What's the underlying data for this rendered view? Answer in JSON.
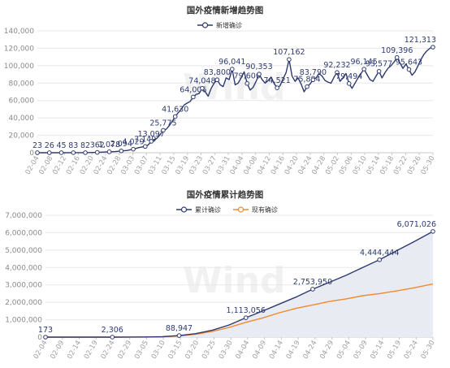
{
  "watermark": "Wind",
  "chart_data": [
    {
      "type": "line",
      "title": "国外疫情新增趋势图",
      "legend": {
        "placement": "top-center"
      },
      "ylim": [
        0,
        140000
      ],
      "yticks": [
        "0",
        "20,000",
        "40,000",
        "60,000",
        "80,000",
        "100,000",
        "120,000",
        "140,000"
      ],
      "x_tick_labels": [
        "02-04",
        "02-08",
        "02-12",
        "02-16",
        "02-20",
        "02-24",
        "02-28",
        "03-03",
        "03-07",
        "03-11",
        "03-15",
        "03-19",
        "03-23",
        "03-27",
        "03-31",
        "04-04",
        "04-08",
        "04-12",
        "04-16",
        "04-20",
        "04-24",
        "04-28",
        "05-02",
        "05-06",
        "05-10",
        "05-14",
        "05-18",
        "05-22",
        "05-26",
        "05-30"
      ],
      "series": [
        {
          "name": "新增确诊",
          "color": "#2e3a6e",
          "points": [
            [
              0,
              23
            ],
            [
              4,
              26
            ],
            [
              8,
              45
            ],
            [
              12,
              83
            ],
            [
              16,
              82
            ],
            [
              20,
              362
            ],
            [
              24,
              1078
            ],
            [
              26,
              1300
            ],
            [
              28,
              2094
            ],
            [
              30,
              2600
            ],
            [
              32,
              4029
            ],
            [
              34,
              6000
            ],
            [
              36,
              7149
            ],
            [
              37,
              9000
            ],
            [
              38,
              13097
            ],
            [
              39,
              14500
            ],
            [
              40,
              17000
            ],
            [
              41,
              21000
            ],
            [
              42,
              25775
            ],
            [
              43,
              27000
            ],
            [
              44,
              31000
            ],
            [
              45,
              36000
            ],
            [
              46,
              41630
            ],
            [
              47,
              46000
            ],
            [
              48,
              50000
            ],
            [
              49,
              55000
            ],
            [
              50,
              57000
            ],
            [
              51,
              59000
            ],
            [
              52,
              64006
            ],
            [
              53,
              67000
            ],
            [
              54,
              68000
            ],
            [
              55,
              74048
            ],
            [
              56,
              70000
            ],
            [
              57,
              65000
            ],
            [
              58,
              74000
            ],
            [
              59,
              80000
            ],
            [
              60,
              83800
            ],
            [
              61,
              78000
            ],
            [
              62,
              76000
            ],
            [
              63,
              86000
            ],
            [
              64,
              84000
            ],
            [
              65,
              96041
            ],
            [
              66,
              78000
            ],
            [
              67,
              80000
            ],
            [
              68,
              86000
            ],
            [
              69,
              93000
            ],
            [
              70,
              79600
            ],
            [
              71,
              72000
            ],
            [
              72,
              75000
            ],
            [
              73,
              82000
            ],
            [
              74,
              90353
            ],
            [
              75,
              84000
            ],
            [
              76,
              80000
            ],
            [
              77,
              83000
            ],
            [
              78,
              87000
            ],
            [
              79,
              79500
            ],
            [
              80,
              74521
            ],
            [
              81,
              77000
            ],
            [
              82,
              85000
            ],
            [
              83,
              92000
            ],
            [
              84,
              107162
            ],
            [
              85,
              88000
            ],
            [
              86,
              82000
            ],
            [
              87,
              86000
            ],
            [
              88,
              79000
            ],
            [
              89,
              70000
            ],
            [
              90,
              75884
            ],
            [
              91,
              79000
            ],
            [
              92,
              83790
            ],
            [
              93,
              86000
            ],
            [
              94,
              91000
            ],
            [
              95,
              88000
            ],
            [
              96,
              83000
            ],
            [
              97,
              81000
            ],
            [
              98,
              80000
            ],
            [
              99,
              87000
            ],
            [
              100,
              92232
            ],
            [
              101,
              82000
            ],
            [
              102,
              86000
            ],
            [
              103,
              91000
            ],
            [
              104,
              79494
            ],
            [
              105,
              74000
            ],
            [
              106,
              80000
            ],
            [
              107,
              86000
            ],
            [
              108,
              91000
            ],
            [
              109,
              96145
            ],
            [
              110,
              90000
            ],
            [
              111,
              84000
            ],
            [
              112,
              82000
            ],
            [
              113,
              88000
            ],
            [
              114,
              93577
            ],
            [
              115,
              86000
            ],
            [
              116,
              92000
            ],
            [
              117,
              97000
            ],
            [
              118,
              100000
            ],
            [
              119,
              104000
            ],
            [
              120,
              109396
            ],
            [
              121,
              103000
            ],
            [
              122,
              97000
            ],
            [
              123,
              102000
            ],
            [
              124,
              95643
            ],
            [
              125,
              89000
            ],
            [
              126,
              93000
            ],
            [
              127,
              100000
            ],
            [
              128,
              107000
            ],
            [
              129,
              113000
            ],
            [
              130,
              117000
            ],
            [
              131,
              120000
            ],
            [
              132,
              121313
            ]
          ],
          "labels": [
            {
              "i": 0,
              "text": "23"
            },
            {
              "i": 4,
              "text": "26"
            },
            {
              "i": 8,
              "text": "45"
            },
            {
              "i": 12,
              "text": "83"
            },
            {
              "i": 16,
              "text": "82"
            },
            {
              "i": 20,
              "text": "362"
            },
            {
              "i": 24,
              "text": "1,078"
            },
            {
              "i": 28,
              "text": "2,094"
            },
            {
              "i": 32,
              "text": "4,029"
            },
            {
              "i": 36,
              "text": "7,149"
            },
            {
              "i": 38,
              "text": "13,097"
            },
            {
              "i": 42,
              "text": "25,775"
            },
            {
              "i": 46,
              "text": "41,630"
            },
            {
              "i": 52,
              "text": "64,006"
            },
            {
              "i": 55,
              "text": "74,048"
            },
            {
              "i": 60,
              "text": "83,800"
            },
            {
              "i": 65,
              "text": "96,041"
            },
            {
              "i": 70,
              "text": "79,600"
            },
            {
              "i": 74,
              "text": "90,353"
            },
            {
              "i": 80,
              "text": "74,521"
            },
            {
              "i": 84,
              "text": "107,162"
            },
            {
              "i": 90,
              "text": "75,884"
            },
            {
              "i": 92,
              "text": "83,790"
            },
            {
              "i": 100,
              "text": "92,232"
            },
            {
              "i": 104,
              "text": "79,494"
            },
            {
              "i": 109,
              "text": "96,145"
            },
            {
              "i": 114,
              "text": "93,577"
            },
            {
              "i": 120,
              "text": "109,396"
            },
            {
              "i": 124,
              "text": "95,643"
            },
            {
              "i": 132,
              "text": "121,313"
            }
          ]
        }
      ]
    },
    {
      "type": "area",
      "title": "国外疫情累计趋势图",
      "legend": {
        "placement": "top-center"
      },
      "ylim": [
        0,
        7000000
      ],
      "yticks": [
        "0",
        "1,000,000",
        "2,000,000",
        "3,000,000",
        "4,000,000",
        "5,000,000",
        "6,000,000",
        "7,000,000"
      ],
      "x_tick_labels": [
        "02-04",
        "02-09",
        "02-14",
        "02-19",
        "02-24",
        "02-29",
        "03-05",
        "03-10",
        "03-15",
        "03-20",
        "03-25",
        "03-30",
        "04-04",
        "04-09",
        "04-14",
        "04-19",
        "04-24",
        "04-29",
        "05-04",
        "05-09",
        "05-14",
        "05-19",
        "05-24",
        "05-30"
      ],
      "series": [
        {
          "name": "累计确诊",
          "color": "#2e3a6e",
          "points": [
            [
              0,
              173
            ],
            [
              10,
              300
            ],
            [
              20,
              2306
            ],
            [
              25,
              3500
            ],
            [
              30,
              8000
            ],
            [
              35,
              25000
            ],
            [
              40,
              88947
            ],
            [
              45,
              200000
            ],
            [
              50,
              400000
            ],
            [
              55,
              700000
            ],
            [
              60,
              1113056
            ],
            [
              65,
              1500000
            ],
            [
              70,
              1900000
            ],
            [
              75,
              2300000
            ],
            [
              80,
              2753950
            ],
            [
              85,
              3150000
            ],
            [
              90,
              3550000
            ],
            [
              95,
              4000000
            ],
            [
              100,
              4444444
            ],
            [
              105,
              4950000
            ],
            [
              110,
              5450000
            ],
            [
              116,
              6071026
            ]
          ],
          "labels": [
            {
              "i": 0,
              "text": "173"
            },
            {
              "i": 20,
              "text": "2,306"
            },
            {
              "i": 40,
              "text": "88,947"
            },
            {
              "i": 60,
              "text": "1,113,056"
            },
            {
              "i": 80,
              "text": "2,753,950"
            },
            {
              "i": 100,
              "text": "4,444,444"
            },
            {
              "i": 116,
              "text": "6,071,026"
            }
          ]
        },
        {
          "name": "现有确诊",
          "color": "#ef8a2e",
          "points": [
            [
              0,
              150
            ],
            [
              10,
              250
            ],
            [
              20,
              1500
            ],
            [
              25,
              2500
            ],
            [
              30,
              6000
            ],
            [
              35,
              20000
            ],
            [
              40,
              70000
            ],
            [
              45,
              170000
            ],
            [
              50,
              330000
            ],
            [
              55,
              560000
            ],
            [
              60,
              850000
            ],
            [
              65,
              1100000
            ],
            [
              70,
              1400000
            ],
            [
              75,
              1650000
            ],
            [
              80,
              1850000
            ],
            [
              85,
              2050000
            ],
            [
              90,
              2200000
            ],
            [
              95,
              2380000
            ],
            [
              100,
              2500000
            ],
            [
              105,
              2650000
            ],
            [
              110,
              2820000
            ],
            [
              116,
              3050000
            ]
          ]
        }
      ]
    }
  ]
}
